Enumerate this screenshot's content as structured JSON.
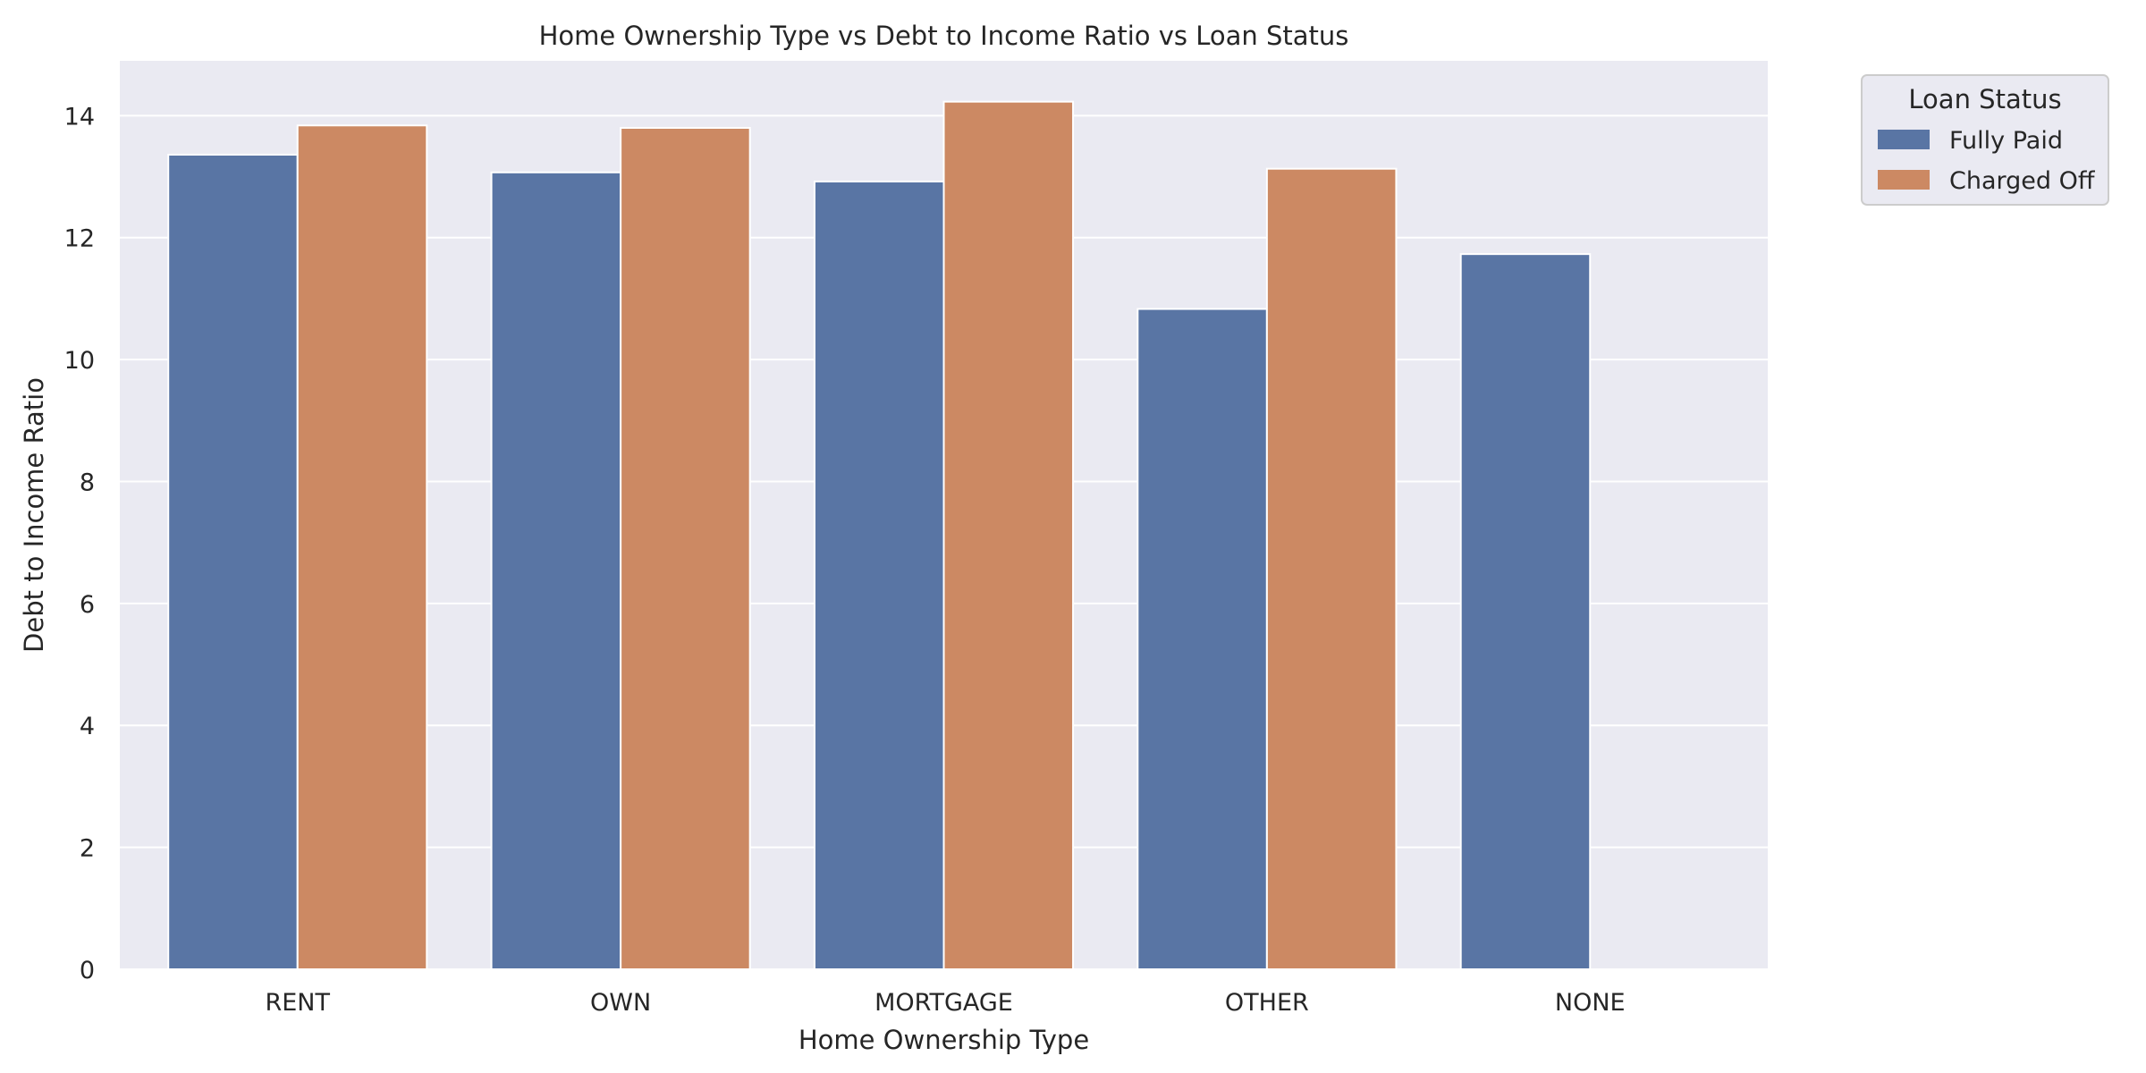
{
  "chart_data": {
    "type": "bar",
    "title": "Home Ownership Type vs Debt to Income Ratio vs Loan Status",
    "xlabel": "Home Ownership Type",
    "ylabel": "Debt to Income Ratio",
    "categories": [
      "RENT",
      "OWN",
      "MORTGAGE",
      "OTHER",
      "NONE"
    ],
    "series": [
      {
        "name": "Fully Paid",
        "color": "#5975a4",
        "values": [
          13.36,
          13.07,
          12.92,
          10.83,
          11.73
        ]
      },
      {
        "name": "Charged Off",
        "color": "#cc8963",
        "values": [
          13.84,
          13.8,
          14.23,
          13.13,
          null
        ]
      }
    ],
    "ylim": [
      0,
      14.9
    ],
    "yticks": [
      0,
      2,
      4,
      6,
      8,
      10,
      12,
      14
    ],
    "grid": true,
    "legend": {
      "title": "Loan Status",
      "placement": "outside-top-right"
    },
    "colors": {
      "plot_background": "#eaeaf2",
      "grid": "#ffffff",
      "bar_edge": "#ffffff",
      "text": "#262626"
    }
  }
}
